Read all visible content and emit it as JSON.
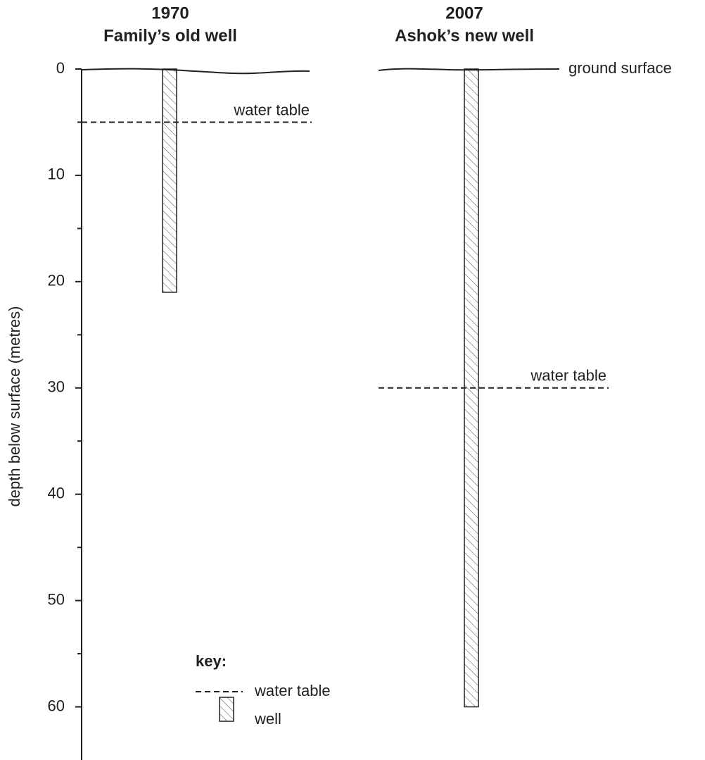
{
  "chart_data": {
    "type": "well",
    "years": [
      "1970",
      "2007"
    ],
    "categories": [
      "Family’s old well",
      "Ashok’s new well"
    ],
    "values": [
      21,
      60
    ],
    "water_table": [
      5,
      30
    ],
    "water_table_label": "water table",
    "ground_label": "ground surface",
    "ylabel": "depth below surface (metres)",
    "ylim": [
      0,
      65
    ],
    "yticks": [
      0,
      10,
      20,
      30,
      40,
      50,
      60
    ],
    "yminor_ticks": [
      5,
      15,
      25,
      35,
      45,
      55
    ],
    "key": {
      "title": "key:",
      "water_table": "water table",
      "well": "well"
    }
  }
}
